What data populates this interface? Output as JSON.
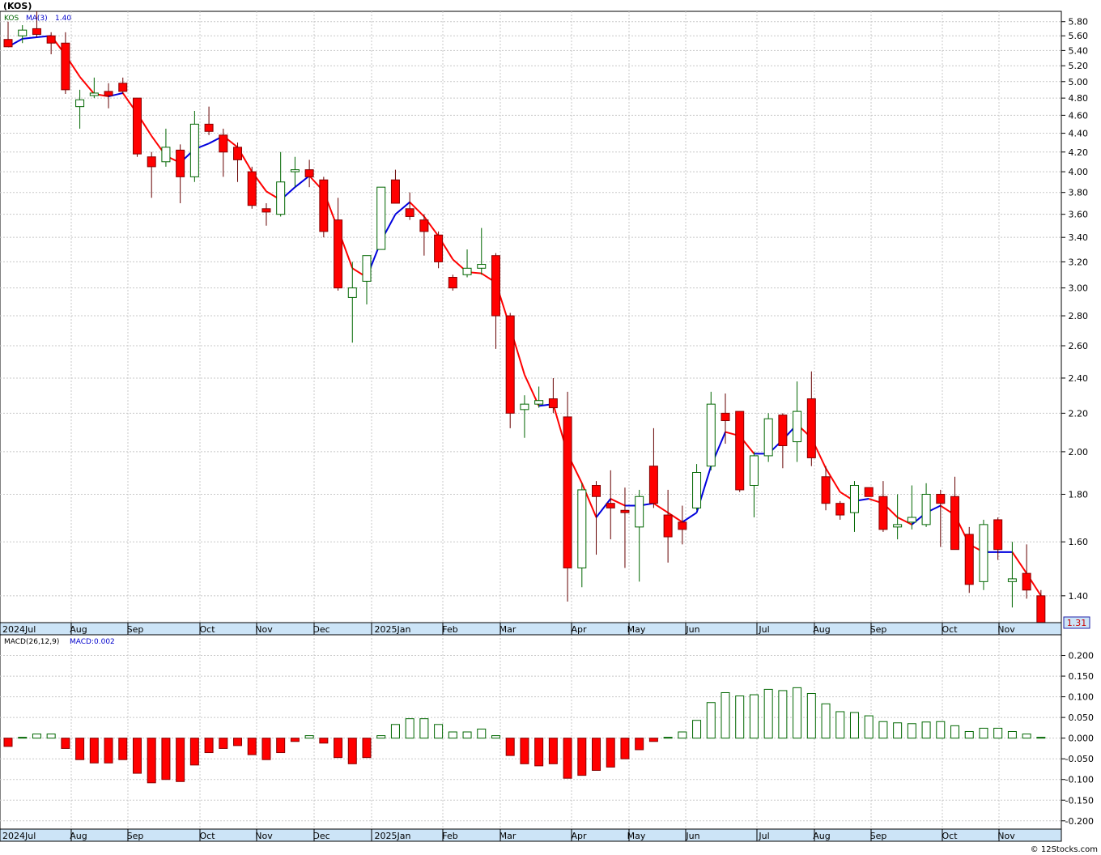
{
  "header": {
    "title": "(KOS)",
    "symbol": "KOS",
    "ma_label": "MA(3)",
    "ma_value": "1.40",
    "last_price": "1.31",
    "macd_label": "MACD(26,12,9)",
    "macd_value_label": "MACD:0.002",
    "footer": "© 12Stocks.com"
  },
  "colors": {
    "up": "#006600",
    "down": "#ff0000",
    "ma_up": "#0000dd",
    "ma_down": "#ff0000",
    "grid": "#c8c8c8",
    "axis_bg": "#cce4f7"
  },
  "months": [
    "2024Jul",
    "Aug",
    "Sep",
    "Oct",
    "Nov",
    "Dec",
    "2025Jan",
    "Feb",
    "Mar",
    "Apr",
    "May",
    "Jun",
    "Jul",
    "Aug",
    "Sep",
    "Oct",
    "Nov"
  ],
  "chart_data": [
    {
      "type": "candlestick",
      "title": "(KOS)",
      "y_ticks": [
        1.4,
        1.6,
        1.8,
        2.0,
        2.2,
        2.4,
        2.6,
        2.8,
        3.0,
        3.2,
        3.4,
        3.6,
        3.8,
        4.0,
        4.2,
        4.4,
        4.6,
        4.8,
        5.0,
        5.2,
        5.4,
        5.6,
        5.8
      ],
      "y_scale": "log",
      "ylim": [
        1.31,
        5.95
      ],
      "legend": [
        "KOS",
        "MA(3) 1.40"
      ],
      "candles": [
        {
          "o": 5.55,
          "h": 5.8,
          "l": 5.45,
          "c": 5.45
        },
        {
          "o": 5.6,
          "h": 5.75,
          "l": 5.5,
          "c": 5.68
        },
        {
          "o": 5.7,
          "h": 5.95,
          "l": 5.58,
          "c": 5.62
        },
        {
          "o": 5.6,
          "h": 5.65,
          "l": 5.35,
          "c": 5.5
        },
        {
          "o": 5.5,
          "h": 5.65,
          "l": 4.85,
          "c": 4.9
        },
        {
          "o": 4.7,
          "h": 4.9,
          "l": 4.45,
          "c": 4.78
        },
        {
          "o": 4.83,
          "h": 5.05,
          "l": 4.8,
          "c": 4.86
        },
        {
          "o": 4.88,
          "h": 4.98,
          "l": 4.68,
          "c": 4.83
        },
        {
          "o": 4.98,
          "h": 5.05,
          "l": 4.85,
          "c": 4.88
        },
        {
          "o": 4.8,
          "h": 4.8,
          "l": 4.15,
          "c": 4.18
        },
        {
          "o": 4.15,
          "h": 4.2,
          "l": 3.75,
          "c": 4.05
        },
        {
          "o": 4.1,
          "h": 4.45,
          "l": 4.05,
          "c": 4.25
        },
        {
          "o": 4.22,
          "h": 4.28,
          "l": 3.7,
          "c": 3.95
        },
        {
          "o": 3.95,
          "h": 4.65,
          "l": 3.9,
          "c": 4.5
        },
        {
          "o": 4.5,
          "h": 4.7,
          "l": 4.38,
          "c": 4.42
        },
        {
          "o": 4.38,
          "h": 4.45,
          "l": 3.95,
          "c": 4.2
        },
        {
          "o": 4.25,
          "h": 4.3,
          "l": 3.9,
          "c": 4.12
        },
        {
          "o": 4.0,
          "h": 4.05,
          "l": 3.65,
          "c": 3.68
        },
        {
          "o": 3.65,
          "h": 3.7,
          "l": 3.5,
          "c": 3.62
        },
        {
          "o": 3.6,
          "h": 4.2,
          "l": 3.58,
          "c": 3.9
        },
        {
          "o": 4.0,
          "h": 4.15,
          "l": 3.85,
          "c": 4.02
        },
        {
          "o": 4.02,
          "h": 4.12,
          "l": 3.85,
          "c": 3.95
        },
        {
          "o": 3.92,
          "h": 3.95,
          "l": 3.4,
          "c": 3.45
        },
        {
          "o": 3.55,
          "h": 3.75,
          "l": 2.98,
          "c": 3.0
        },
        {
          "o": 2.93,
          "h": 3.2,
          "l": 2.62,
          "c": 3.0
        },
        {
          "o": 3.05,
          "h": 3.25,
          "l": 2.88,
          "c": 3.25
        },
        {
          "o": 3.3,
          "h": 3.85,
          "l": 3.3,
          "c": 3.85
        },
        {
          "o": 3.92,
          "h": 4.02,
          "l": 3.7,
          "c": 3.7
        },
        {
          "o": 3.65,
          "h": 3.8,
          "l": 3.55,
          "c": 3.58
        },
        {
          "o": 3.55,
          "h": 3.6,
          "l": 3.25,
          "c": 3.45
        },
        {
          "o": 3.42,
          "h": 3.45,
          "l": 3.15,
          "c": 3.2
        },
        {
          "o": 3.08,
          "h": 3.1,
          "l": 2.98,
          "c": 3.0
        },
        {
          "o": 3.1,
          "h": 3.3,
          "l": 3.08,
          "c": 3.15
        },
        {
          "o": 3.15,
          "h": 3.48,
          "l": 3.1,
          "c": 3.18
        },
        {
          "o": 3.25,
          "h": 3.27,
          "l": 2.58,
          "c": 2.8
        },
        {
          "o": 2.8,
          "h": 2.82,
          "l": 2.12,
          "c": 2.2
        },
        {
          "o": 2.22,
          "h": 2.3,
          "l": 2.07,
          "c": 2.25
        },
        {
          "o": 2.25,
          "h": 2.35,
          "l": 2.23,
          "c": 2.27
        },
        {
          "o": 2.28,
          "h": 2.4,
          "l": 2.2,
          "c": 2.23
        },
        {
          "o": 2.18,
          "h": 2.32,
          "l": 1.38,
          "c": 1.5
        },
        {
          "o": 1.5,
          "h": 1.85,
          "l": 1.43,
          "c": 1.82
        },
        {
          "o": 1.84,
          "h": 1.86,
          "l": 1.55,
          "c": 1.79
        },
        {
          "o": 1.76,
          "h": 1.91,
          "l": 1.61,
          "c": 1.74
        },
        {
          "o": 1.73,
          "h": 1.83,
          "l": 1.5,
          "c": 1.72
        },
        {
          "o": 1.66,
          "h": 1.82,
          "l": 1.45,
          "c": 1.79
        },
        {
          "o": 1.93,
          "h": 2.12,
          "l": 1.74,
          "c": 1.76
        },
        {
          "o": 1.71,
          "h": 1.82,
          "l": 1.52,
          "c": 1.62
        },
        {
          "o": 1.68,
          "h": 1.75,
          "l": 1.59,
          "c": 1.65
        },
        {
          "o": 1.74,
          "h": 1.94,
          "l": 1.73,
          "c": 1.9
        },
        {
          "o": 1.93,
          "h": 2.32,
          "l": 1.91,
          "c": 2.25
        },
        {
          "o": 2.2,
          "h": 2.31,
          "l": 2.04,
          "c": 2.16
        },
        {
          "o": 2.21,
          "h": 2.21,
          "l": 1.81,
          "c": 1.82
        },
        {
          "o": 1.84,
          "h": 2.0,
          "l": 1.7,
          "c": 1.98
        },
        {
          "o": 1.98,
          "h": 2.2,
          "l": 1.95,
          "c": 2.17
        },
        {
          "o": 2.19,
          "h": 2.2,
          "l": 1.92,
          "c": 2.03
        },
        {
          "o": 2.05,
          "h": 2.38,
          "l": 1.95,
          "c": 2.21
        },
        {
          "o": 2.28,
          "h": 2.44,
          "l": 1.93,
          "c": 1.97
        },
        {
          "o": 1.88,
          "h": 1.93,
          "l": 1.73,
          "c": 1.76
        },
        {
          "o": 1.76,
          "h": 1.77,
          "l": 1.69,
          "c": 1.71
        },
        {
          "o": 1.72,
          "h": 1.86,
          "l": 1.64,
          "c": 1.84
        },
        {
          "o": 1.83,
          "h": 1.83,
          "l": 1.79,
          "c": 1.79
        },
        {
          "o": 1.79,
          "h": 1.86,
          "l": 1.64,
          "c": 1.65
        },
        {
          "o": 1.66,
          "h": 1.8,
          "l": 1.61,
          "c": 1.67
        },
        {
          "o": 1.68,
          "h": 1.84,
          "l": 1.65,
          "c": 1.7
        },
        {
          "o": 1.67,
          "h": 1.85,
          "l": 1.66,
          "c": 1.8
        },
        {
          "o": 1.8,
          "h": 1.82,
          "l": 1.58,
          "c": 1.76
        },
        {
          "o": 1.79,
          "h": 1.88,
          "l": 1.57,
          "c": 1.57
        },
        {
          "o": 1.63,
          "h": 1.66,
          "l": 1.41,
          "c": 1.44
        },
        {
          "o": 1.45,
          "h": 1.69,
          "l": 1.42,
          "c": 1.67
        },
        {
          "o": 1.69,
          "h": 1.7,
          "l": 1.53,
          "c": 1.57
        },
        {
          "o": 1.45,
          "h": 1.6,
          "l": 1.36,
          "c": 1.46
        },
        {
          "o": 1.48,
          "h": 1.59,
          "l": 1.39,
          "c": 1.42
        },
        {
          "o": 1.4,
          "h": 1.42,
          "l": 1.3,
          "c": 1.31
        }
      ],
      "ma3": [
        5.45,
        5.56,
        5.58,
        5.6,
        5.34,
        5.06,
        4.85,
        4.82,
        4.86,
        4.62,
        4.37,
        4.16,
        4.09,
        4.23,
        4.29,
        4.37,
        4.25,
        4.0,
        3.81,
        3.73,
        3.85,
        3.96,
        3.81,
        3.47,
        3.15,
        3.08,
        3.37,
        3.6,
        3.71,
        3.58,
        3.41,
        3.22,
        3.12,
        3.11,
        3.04,
        2.72,
        2.42,
        2.24,
        2.25,
        1.99,
        1.85,
        1.7,
        1.78,
        1.75,
        1.75,
        1.76,
        1.72,
        1.68,
        1.72,
        1.93,
        2.1,
        2.08,
        1.99,
        1.99,
        2.06,
        2.14,
        2.07,
        1.92,
        1.81,
        1.77,
        1.78,
        1.76,
        1.7,
        1.67,
        1.72,
        1.75,
        1.71,
        1.59,
        1.56,
        1.56,
        1.56,
        1.48,
        1.4
      ]
    },
    {
      "type": "bar",
      "title": "MACD(26,12,9)",
      "legend": [
        "MACD(26,12,9)",
        "MACD:0.002"
      ],
      "y_ticks": [
        -0.2,
        -0.15,
        -0.1,
        -0.05,
        0.0,
        0.05,
        0.1,
        0.15,
        0.2
      ],
      "y_tick_labels": [
        "-0.200",
        "-0.150",
        "-0.100",
        "-0.050",
        "0.000",
        "0.050",
        "0.100",
        "0.150",
        "0.200"
      ],
      "ylim": [
        -0.22,
        0.25
      ],
      "values": [
        -0.02,
        0.002,
        0.01,
        0.01,
        -0.025,
        -0.052,
        -0.06,
        -0.06,
        -0.052,
        -0.085,
        -0.108,
        -0.1,
        -0.105,
        -0.065,
        -0.035,
        -0.025,
        -0.018,
        -0.04,
        -0.052,
        -0.035,
        -0.008,
        0.006,
        -0.012,
        -0.047,
        -0.062,
        -0.047,
        0.006,
        0.033,
        0.047,
        0.047,
        0.033,
        0.015,
        0.015,
        0.022,
        0.006,
        -0.042,
        -0.062,
        -0.067,
        -0.062,
        -0.097,
        -0.09,
        -0.078,
        -0.07,
        -0.05,
        -0.028,
        -0.008,
        0.002,
        0.015,
        0.043,
        0.086,
        0.11,
        0.102,
        0.105,
        0.118,
        0.115,
        0.122,
        0.108,
        0.083,
        0.064,
        0.062,
        0.054,
        0.04,
        0.037,
        0.035,
        0.039,
        0.04,
        0.03,
        0.016,
        0.024,
        0.024,
        0.016,
        0.01,
        0.002
      ]
    }
  ]
}
